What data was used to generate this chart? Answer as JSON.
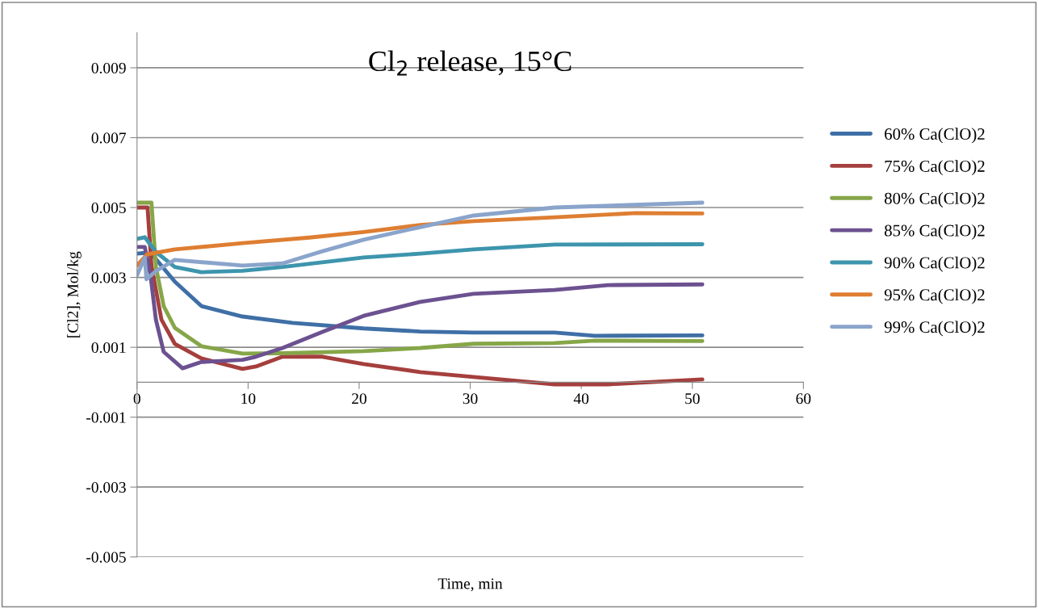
{
  "chart_data": {
    "type": "line",
    "title": "Cl$_{2}$ release, 15°C",
    "xlabel": "Time, min",
    "ylabel": "[Cl2], Mol/kg",
    "xlim": [
      0,
      60
    ],
    "xticks": [
      0,
      10,
      20,
      30,
      40,
      50,
      60
    ],
    "ylim": [
      -0.005,
      0.01
    ],
    "yticks": [
      -0.005,
      -0.003,
      -0.001,
      0.001,
      0.003,
      0.005,
      0.007,
      0.009
    ],
    "grid": "y",
    "legend": "right",
    "marker": "none",
    "line_style": "solid",
    "series": [
      {
        "name": "60% Ca(ClO)2",
        "color": "#3f6fa6",
        "x": [
          0,
          0.7,
          1.5,
          3.4,
          5.8,
          9.5,
          14,
          20.4,
          25.5,
          30.3,
          37.6,
          41.2,
          50.9
        ],
        "values": [
          0.00368,
          0.0037,
          0.0036,
          0.00288,
          0.00218,
          0.00188,
          0.0017,
          0.00154,
          0.00145,
          0.00142,
          0.00142,
          0.00133,
          0.00134
        ]
      },
      {
        "name": "75% Ca(ClO)2",
        "color": "#a53f3d",
        "x": [
          0,
          0.95,
          1.3,
          2.2,
          3.4,
          5.8,
          9.5,
          10.7,
          13.1,
          16.7,
          20.4,
          25.5,
          30.3,
          37.6,
          42.4,
          50.9
        ],
        "values": [
          0.005,
          0.005,
          0.00334,
          0.00179,
          0.0011,
          0.00068,
          0.00038,
          0.00045,
          0.00073,
          0.00073,
          0.00052,
          0.00029,
          0.00015,
          -6e-05,
          -6e-05,
          8e-05
        ]
      },
      {
        "name": "80% Ca(ClO)2",
        "color": "#86a648",
        "x": [
          0,
          1.3,
          1.7,
          2.4,
          3.4,
          5.8,
          9.5,
          13.1,
          20.4,
          25.5,
          30.3,
          37.6,
          41.2,
          50.9
        ],
        "values": [
          0.00514,
          0.00514,
          0.0033,
          0.00218,
          0.00156,
          0.00103,
          0.00082,
          0.00083,
          0.00089,
          0.00098,
          0.0011,
          0.00112,
          0.00119,
          0.00118
        ]
      },
      {
        "name": "85% Ca(ClO)2",
        "color": "#6c5190",
        "x": [
          0,
          0.7,
          1.2,
          1.7,
          2.4,
          4.1,
          5.8,
          9.5,
          10.7,
          13.1,
          16.7,
          20.4,
          25.5,
          30.3,
          37.6,
          42.4,
          50.9
        ],
        "values": [
          0.00387,
          0.00387,
          0.0031,
          0.00179,
          0.00087,
          0.0004,
          0.00058,
          0.00064,
          0.00073,
          0.00098,
          0.00144,
          0.0019,
          0.0023,
          0.00253,
          0.00264,
          0.00278,
          0.0028
        ]
      },
      {
        "name": "90% Ca(ClO)2",
        "color": "#3d95ad",
        "x": [
          0,
          0.7,
          1.7,
          3.4,
          5.8,
          9.5,
          13.1,
          20.4,
          25.5,
          30.3,
          37.6,
          50.9
        ],
        "values": [
          0.0041,
          0.00415,
          0.00373,
          0.0033,
          0.00315,
          0.00319,
          0.0033,
          0.00357,
          0.00368,
          0.0038,
          0.00394,
          0.00395
        ]
      },
      {
        "name": "95% Ca(ClO)2",
        "color": "#de7e32",
        "x": [
          0,
          0.9,
          3.4,
          9.5,
          15.5,
          20.4,
          25.5,
          30.3,
          37.6,
          44.9,
          50.9
        ],
        "values": [
          0.00334,
          0.00366,
          0.0038,
          0.00398,
          0.00414,
          0.0043,
          0.0045,
          0.00461,
          0.00472,
          0.00484,
          0.00483
        ]
      },
      {
        "name": "99% Ca(ClO)2",
        "color": "#8aa4cb",
        "x": [
          0,
          0.7,
          0.85,
          1.7,
          3.4,
          9.5,
          13.1,
          16.7,
          20.4,
          25.5,
          30.3,
          37.6,
          50.9
        ],
        "values": [
          0.00306,
          0.00357,
          0.00295,
          0.00318,
          0.0035,
          0.00334,
          0.0034,
          0.00375,
          0.00408,
          0.00444,
          0.00477,
          0.005,
          0.00514
        ]
      }
    ]
  }
}
